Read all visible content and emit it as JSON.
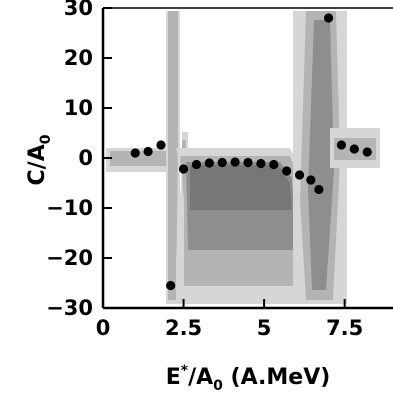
{
  "chart_data": {
    "type": "scatter",
    "xlabel_parts": {
      "main": "E",
      "sup": "*",
      "slash": "/A",
      "sub": "0",
      "unit": " (A.MeV)"
    },
    "ylabel_parts": {
      "main": "C/A",
      "sub": "0"
    },
    "xlim": [
      0,
      9
    ],
    "ylim": [
      -30,
      30
    ],
    "x_ticks": [
      {
        "value": 0,
        "label": "0"
      },
      {
        "value": 2.5,
        "label": "2.5"
      },
      {
        "value": 5,
        "label": "5"
      },
      {
        "value": 7.5,
        "label": "7.5"
      }
    ],
    "y_ticks": [
      {
        "value": -30,
        "label": "−30"
      },
      {
        "value": -20,
        "label": "−20"
      },
      {
        "value": -10,
        "label": "−10"
      },
      {
        "value": 0,
        "label": "0"
      },
      {
        "value": 10,
        "label": "10"
      },
      {
        "value": 20,
        "label": "20"
      },
      {
        "value": 30,
        "label": "30"
      }
    ],
    "points": [
      {
        "x": 1.0,
        "y": 1.0
      },
      {
        "x": 1.4,
        "y": 1.3
      },
      {
        "x": 1.8,
        "y": 2.6
      },
      {
        "x": 2.1,
        "y": -25.5
      },
      {
        "x": 2.5,
        "y": -2.2
      },
      {
        "x": 2.9,
        "y": -1.3
      },
      {
        "x": 3.3,
        "y": -1.0
      },
      {
        "x": 3.7,
        "y": -0.9
      },
      {
        "x": 4.1,
        "y": -0.8
      },
      {
        "x": 4.5,
        "y": -0.9
      },
      {
        "x": 4.9,
        "y": -1.1
      },
      {
        "x": 5.3,
        "y": -1.3
      },
      {
        "x": 5.7,
        "y": -2.6
      },
      {
        "x": 6.1,
        "y": -3.4
      },
      {
        "x": 6.45,
        "y": -4.4
      },
      {
        "x": 6.7,
        "y": -6.3
      },
      {
        "x": 7.0,
        "y": 28.0
      },
      {
        "x": 7.4,
        "y": 2.6
      },
      {
        "x": 7.8,
        "y": 1.8
      },
      {
        "x": 8.2,
        "y": 1.2
      }
    ],
    "colors": {
      "point": "#000000",
      "band_light": "#d6d6d6",
      "band_mid": "#b4b4b4",
      "band_dark": "#8e8e8e",
      "axis": "#000000"
    }
  }
}
